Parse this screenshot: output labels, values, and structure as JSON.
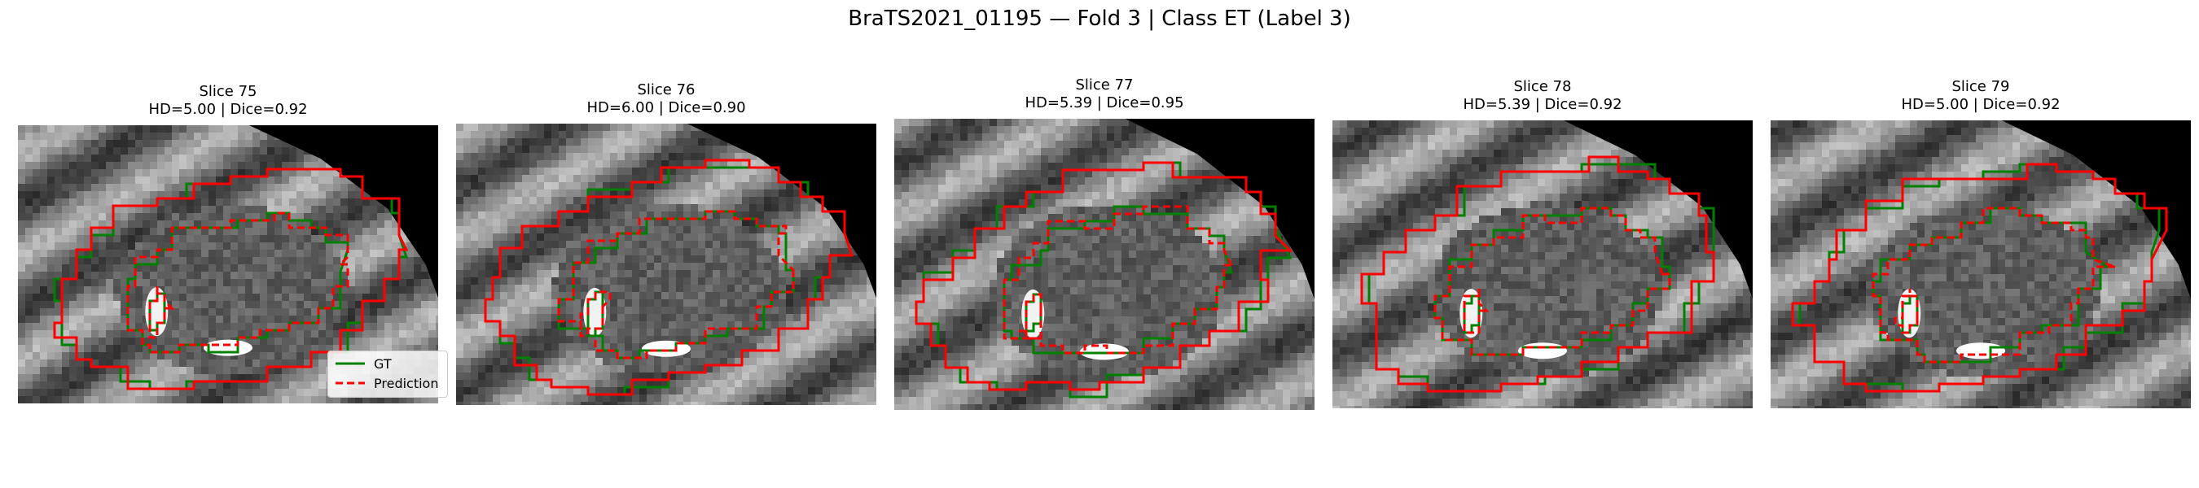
{
  "figure": {
    "title": "BraTS2021_01195 — Fold 3 | Class ET (Label 3)"
  },
  "panels": [
    {
      "slice": "Slice 75",
      "metrics": "HD=5.00 | Dice=0.92"
    },
    {
      "slice": "Slice 76",
      "metrics": "HD=6.00 | Dice=0.90"
    },
    {
      "slice": "Slice 77",
      "metrics": "HD=5.39 | Dice=0.95"
    },
    {
      "slice": "Slice 78",
      "metrics": "HD=5.39 | Dice=0.92"
    },
    {
      "slice": "Slice 79",
      "metrics": "HD=5.00 | Dice=0.92"
    }
  ],
  "legend": {
    "items": [
      {
        "label": "GT",
        "color": "#008000",
        "style": "solid"
      },
      {
        "label": "Prediction",
        "color": "#ff0000",
        "style": "dashed"
      }
    ]
  },
  "colors": {
    "gt": "#008000",
    "prediction": "#ff0000"
  }
}
